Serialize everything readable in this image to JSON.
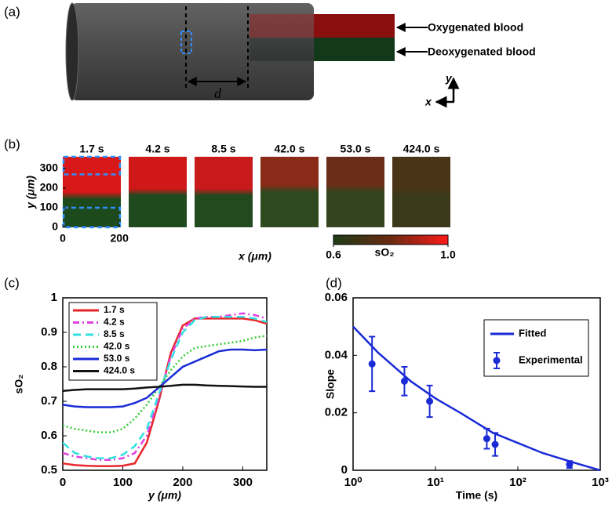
{
  "diagram": {
    "label": "(a)",
    "oxygenated": "Oxygenated blood",
    "deoxygenated": "Deoxygenated blood",
    "distance": "d",
    "axis_x": "x",
    "axis_y": "y"
  },
  "images": {
    "label": "(b)",
    "times": [
      "1.7 s",
      "4.2 s",
      "8.5 s",
      "42.0 s",
      "53.0 s",
      "424.0 s"
    ],
    "xlabel": "x (μm)",
    "ylabel": "y (μm)",
    "xlim": [
      0,
      205
    ],
    "ylim": [
      0,
      360
    ],
    "xticks": [
      0,
      200
    ],
    "yticks": [
      0,
      100,
      200,
      300
    ],
    "colorbar": {
      "label": "sO₂",
      "lim": [
        0.6,
        1.0
      ],
      "ticks": [
        0.6,
        {
          "value": 1.0,
          "label": "1.0"
        }
      ]
    }
  },
  "chart_data": [
    {
      "type": "line",
      "label": "(c)",
      "xlabel": "y (μm)",
      "ylabel": "sO₂",
      "x": [
        0,
        20,
        40,
        60,
        80,
        100,
        120,
        140,
        160,
        180,
        200,
        220,
        240,
        260,
        280,
        300,
        320,
        340
      ],
      "xlim": [
        0,
        340
      ],
      "ylim": [
        0.5,
        1
      ],
      "xticks": [
        0,
        100,
        200,
        300
      ],
      "yticks": [
        0.5,
        0.6,
        0.7,
        0.8,
        0.9,
        1
      ],
      "legend": "upper-left",
      "series": [
        {
          "name": "1.7 s",
          "color": "#e8262a",
          "dash": "solid",
          "values": [
            0.52,
            0.515,
            0.513,
            0.512,
            0.512,
            0.513,
            0.52,
            0.58,
            0.7,
            0.84,
            0.92,
            0.94,
            0.94,
            0.94,
            0.94,
            0.94,
            0.935,
            0.925
          ]
        },
        {
          "name": "4.2 s",
          "color": "#e040e0",
          "dash": "dashdot",
          "values": [
            0.55,
            0.54,
            0.535,
            0.53,
            0.53,
            0.535,
            0.55,
            0.6,
            0.71,
            0.83,
            0.91,
            0.94,
            0.945,
            0.945,
            0.95,
            0.955,
            0.95,
            0.94
          ]
        },
        {
          "name": "8.5 s",
          "color": "#30e0e0",
          "dash": "dashed",
          "values": [
            0.58,
            0.55,
            0.54,
            0.535,
            0.535,
            0.545,
            0.57,
            0.62,
            0.72,
            0.82,
            0.9,
            0.935,
            0.945,
            0.945,
            0.945,
            0.945,
            0.94,
            0.93
          ]
        },
        {
          "name": "42.0 s",
          "color": "#33cc33",
          "dash": "dotted",
          "values": [
            0.63,
            0.62,
            0.615,
            0.61,
            0.61,
            0.62,
            0.65,
            0.69,
            0.74,
            0.79,
            0.83,
            0.855,
            0.86,
            0.865,
            0.87,
            0.875,
            0.885,
            0.89
          ]
        },
        {
          "name": "53.0 s",
          "color": "#1a2bd6",
          "dash": "solid",
          "values": [
            0.69,
            0.685,
            0.683,
            0.683,
            0.683,
            0.685,
            0.695,
            0.71,
            0.74,
            0.77,
            0.8,
            0.815,
            0.83,
            0.845,
            0.85,
            0.85,
            0.848,
            0.85
          ]
        },
        {
          "name": "424.0 s",
          "color": "#111111",
          "dash": "solid",
          "values": [
            0.73,
            0.733,
            0.735,
            0.735,
            0.735,
            0.735,
            0.737,
            0.74,
            0.742,
            0.745,
            0.748,
            0.748,
            0.746,
            0.745,
            0.744,
            0.743,
            0.742,
            0.742
          ]
        }
      ]
    },
    {
      "type": "scatter",
      "label": "(d)",
      "xlabel": "Time (s)",
      "ylabel": "Slope",
      "xscale": "log",
      "xlim": [
        1,
        1000
      ],
      "ylim": [
        0,
        0.06
      ],
      "xticks": [
        {
          "value": 1,
          "label": "10⁰"
        },
        {
          "value": 10,
          "label": "10¹"
        },
        {
          "value": 100,
          "label": "10²"
        },
        {
          "value": 1000,
          "label": "10³"
        }
      ],
      "yticks": [
        0,
        0.02,
        0.04,
        0.06
      ],
      "legend": "upper-right",
      "series": [
        {
          "name": "Fitted",
          "color": "#1a2bd6",
          "style": "line",
          "x": [
            1,
            2,
            5,
            10,
            20,
            50,
            100,
            200,
            500,
            1000
          ],
          "values": [
            0.05,
            0.041,
            0.031,
            0.025,
            0.02,
            0.013,
            0.0095,
            0.006,
            0.0025,
            0
          ]
        },
        {
          "name": "Experimental",
          "color": "#1a2bd6",
          "style": "errorbar",
          "x": [
            1.7,
            4.2,
            8.5,
            42,
            53,
            424
          ],
          "values": [
            0.037,
            0.031,
            0.024,
            0.011,
            0.009,
            0.002
          ],
          "errors": [
            0.0095,
            0.005,
            0.0055,
            0.0035,
            0.004,
            0.0012
          ]
        }
      ]
    }
  ]
}
